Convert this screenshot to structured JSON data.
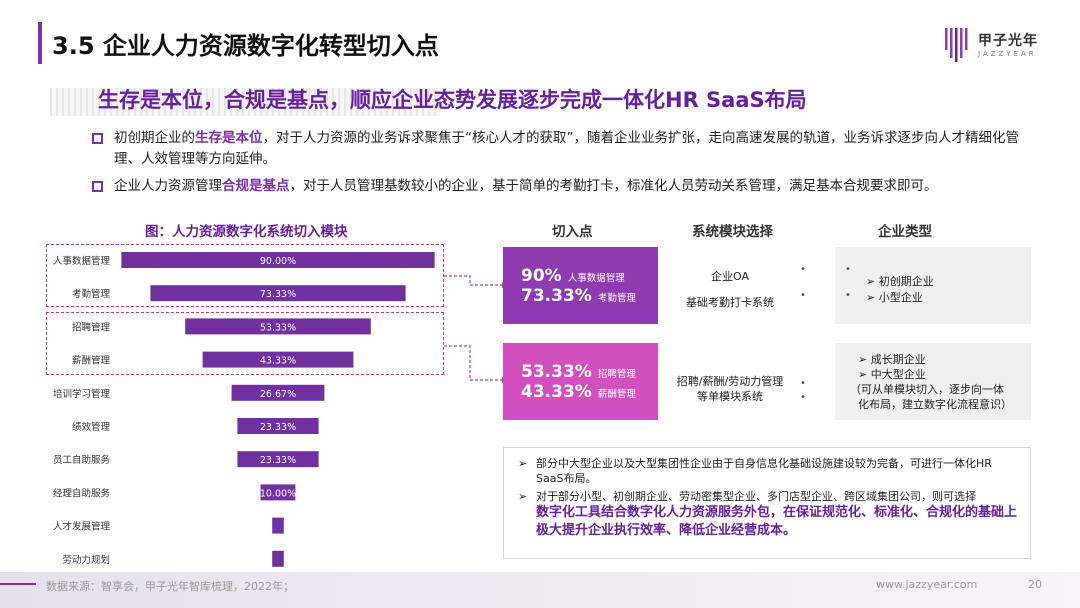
{
  "header": {
    "title": "3.5 企业人力资源数字化转型切入点",
    "logo_cn": "甲子光年",
    "logo_en": "JAZZYEAR"
  },
  "subtitle": "生存是本位，合规是基点，顺应企业态势发展逐步完成一体化HR SaaS布局",
  "bullets": [
    {
      "pre": "初创期企业的",
      "hl": "生存是本位",
      "post": "，对于人力资源的业务诉求聚焦于“核心人才的获取”，随着企业业务扩张，走向高速发展的轨道，业务诉求逐步向人才精细化管理、人效管理等方向延伸。"
    },
    {
      "pre": "企业人力资源管理",
      "hl": "合规是基点",
      "post": "，对于人员管理基数较小的企业，基于简单的考勤打卡，标准化人员劳动关系管理，满足基本合规要求即可。"
    }
  ],
  "chart_data": {
    "type": "bar",
    "orientation": "horizontal",
    "title": "图：人力资源数字化系统切入模块",
    "categories": [
      "人事数据管理",
      "考勤管理",
      "招聘管理",
      "薪酬管理",
      "培训学习管理",
      "绩效管理",
      "员工自助服务",
      "经理自助服务",
      "人才发展管理",
      "劳动力规划"
    ],
    "values": [
      90.0,
      73.33,
      53.33,
      43.33,
      26.67,
      23.33,
      23.33,
      10.0,
      3.33,
      3.33
    ],
    "labels": [
      "90.00%",
      "73.33%",
      "53.33%",
      "43.33%",
      "26.67%",
      "23.33%",
      "23.33%",
      "10.00%",
      "",
      ""
    ],
    "xlim": [
      0,
      100
    ],
    "color": "#7030a0"
  },
  "table": {
    "headers": [
      "切入点",
      "系统模块选择",
      "企业类型"
    ],
    "rows": [
      {
        "points": [
          {
            "pct": "90%",
            "label": "人事数据管理"
          },
          {
            "pct": "73.33%",
            "label": "考勤管理"
          }
        ],
        "modules": [
          "企业OA",
          "基础考勤打卡系统"
        ],
        "types": [
          "初创期企业",
          "小型企业"
        ],
        "color": "#8e3ab0"
      },
      {
        "points": [
          {
            "pct": "53.33%",
            "label": "招聘管理"
          },
          {
            "pct": "43.33%",
            "label": "薪酬管理"
          }
        ],
        "modules": [
          "招聘/薪酬/劳动力管理",
          "等单模块系统"
        ],
        "types": [
          "成长期企业",
          "中大型企业"
        ],
        "types_note": [
          "（可从单模块切入，逐步向一体",
          "化布局，建立数字化流程意识）"
        ],
        "color": "#d24fbf"
      }
    ]
  },
  "notes": [
    {
      "text": "部分中大型企业以及大型集团性企业由于自身信息化基础设施建设较为完备，可进行一体化HR SaaS布局。"
    },
    {
      "text": "对于部分小型、初创期企业、劳动密集型企业、多门店型企业、跨区域集团公司，则可选择",
      "hl": "数字化工具结合数字化人力资源服务外包，在保证规范化、标准化、合规化的基础上极大提升企业执行效率、降低企业经营成本。"
    }
  ],
  "footer": {
    "source": "数据来源：智享会，甲子光年智库梳理，2022年；",
    "url": "www.jazzyear.com",
    "page": "20"
  },
  "glyphs": {
    "bullet_arrow": "➢",
    "list_arrow": "➢",
    "connector_dot": "•"
  }
}
